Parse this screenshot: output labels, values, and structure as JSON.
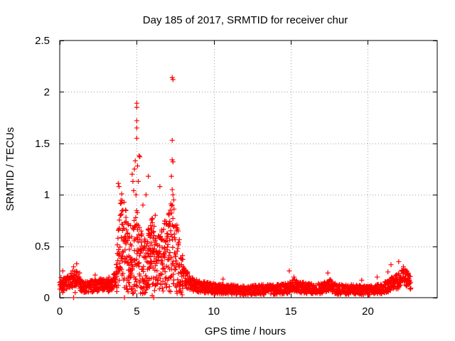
{
  "chart_data": {
    "type": "scatter",
    "title": "Day 185 of 2017, SRMTID for receiver chur",
    "xlabel": "GPS time / hours",
    "ylabel": "SRMTID / TECUs",
    "xlim": [
      0,
      24.5
    ],
    "ylim": [
      0,
      2.5
    ],
    "grid": true,
    "legend": "none",
    "x_ticks": [
      0,
      5,
      10,
      15,
      20
    ],
    "x_tick_labels": [
      "0",
      "5",
      "10",
      "15",
      "20"
    ],
    "y_ticks": [
      0,
      0.5,
      1,
      1.5,
      2,
      2.5
    ],
    "y_tick_labels": [
      "0",
      "0.5",
      "1",
      "1.5",
      "2",
      "2.5"
    ],
    "marker": "+",
    "color": "#ff0000",
    "series": [
      {
        "name": "SRMTID",
        "background_profile": {
          "x": [
            0,
            0.5,
            1,
            1.5,
            2,
            2.5,
            3,
            3.3,
            3.6,
            3.8,
            4.0,
            4.3,
            4.6,
            5.0,
            5.3,
            5.6,
            6.0,
            6.3,
            6.6,
            7.0,
            7.3,
            7.6,
            7.9,
            8.2,
            8.6,
            9.0,
            10,
            11,
            12,
            13,
            14,
            14.8,
            15.2,
            16,
            17,
            17.5,
            18,
            19,
            20,
            21,
            21.5,
            22,
            22.3,
            22.6,
            22.8
          ],
          "y": [
            0.13,
            0.14,
            0.2,
            0.1,
            0.11,
            0.12,
            0.13,
            0.11,
            0.18,
            0.35,
            0.55,
            0.45,
            0.3,
            0.5,
            0.35,
            0.3,
            0.45,
            0.3,
            0.35,
            0.45,
            0.5,
            0.38,
            0.25,
            0.18,
            0.13,
            0.11,
            0.09,
            0.08,
            0.07,
            0.08,
            0.08,
            0.09,
            0.12,
            0.09,
            0.09,
            0.12,
            0.08,
            0.08,
            0.07,
            0.09,
            0.13,
            0.16,
            0.2,
            0.18,
            0.14
          ]
        },
        "points": [
          [
            5.0,
            1.89
          ],
          [
            5.0,
            1.85
          ],
          [
            5.0,
            1.72
          ],
          [
            5.0,
            1.65
          ],
          [
            5.0,
            1.55
          ],
          [
            7.3,
            2.14
          ],
          [
            7.35,
            2.12
          ],
          [
            7.3,
            1.53
          ],
          [
            7.3,
            1.34
          ],
          [
            7.35,
            1.32
          ],
          [
            7.25,
            1.18
          ],
          [
            7.3,
            1.05
          ],
          [
            7.35,
            1.0
          ],
          [
            7.4,
            0.95
          ],
          [
            7.3,
            0.9
          ],
          [
            5.15,
            1.38
          ],
          [
            5.2,
            1.37
          ],
          [
            4.9,
            1.33
          ],
          [
            4.85,
            1.25
          ],
          [
            5.05,
            1.28
          ],
          [
            4.7,
            1.2
          ],
          [
            4.75,
            1.13
          ],
          [
            4.8,
            1.04
          ],
          [
            4.95,
            1.0
          ],
          [
            5.1,
            1.13
          ],
          [
            3.8,
            1.11
          ],
          [
            3.85,
            1.08
          ],
          [
            4.0,
            0.92
          ],
          [
            4.1,
            0.85
          ],
          [
            4.3,
            0.78
          ],
          [
            5.4,
            0.9
          ],
          [
            5.6,
            1.0
          ],
          [
            5.75,
            1.18
          ],
          [
            6.5,
            1.08
          ],
          [
            6.2,
            0.8
          ],
          [
            6.0,
            0.77
          ],
          [
            5.9,
            0.7
          ],
          [
            6.8,
            0.72
          ],
          [
            7.0,
            0.62
          ],
          [
            7.1,
            0.82
          ],
          [
            7.5,
            0.7
          ],
          [
            7.6,
            0.68
          ],
          [
            7.2,
            0.65
          ],
          [
            6.9,
            0.55
          ],
          [
            6.4,
            0.6
          ],
          [
            4.4,
            0.62
          ],
          [
            4.6,
            0.7
          ],
          [
            5.3,
            0.6
          ],
          [
            5.5,
            0.55
          ],
          [
            5.8,
            0.48
          ],
          [
            3.2,
            0.2
          ],
          [
            0.9,
            0.3
          ],
          [
            1.1,
            0.33
          ],
          [
            0.2,
            0.26
          ],
          [
            1.3,
            0.24
          ],
          [
            2.3,
            0.22
          ],
          [
            3.9,
            0.3
          ],
          [
            8.0,
            0.3
          ],
          [
            8.3,
            0.25
          ],
          [
            10.6,
            0.18
          ],
          [
            14.9,
            0.26
          ],
          [
            15.2,
            0.2
          ],
          [
            17.4,
            0.24
          ],
          [
            19.6,
            0.17
          ],
          [
            20.6,
            0.2
          ],
          [
            21.3,
            0.25
          ],
          [
            21.5,
            0.32
          ],
          [
            22.0,
            0.35
          ],
          [
            22.3,
            0.3
          ],
          [
            22.5,
            0.26
          ],
          [
            0.9,
            0.0
          ],
          [
            4.2,
            0.0
          ],
          [
            6.1,
            0.0
          ],
          [
            5.4,
            0.05
          ],
          [
            6.0,
            0.02
          ],
          [
            0.2,
            0.05
          ],
          [
            1.0,
            0.05
          ]
        ]
      }
    ]
  }
}
